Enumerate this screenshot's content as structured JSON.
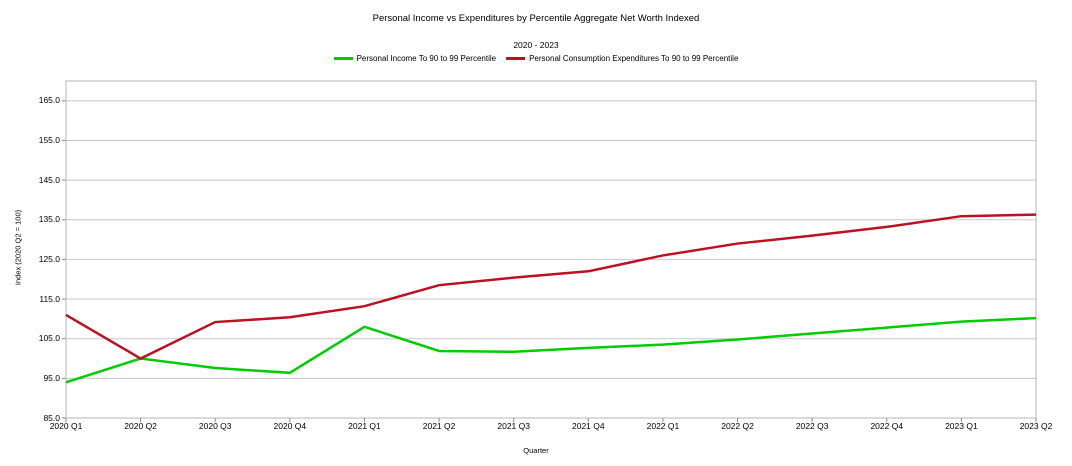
{
  "chart_data": {
    "type": "line",
    "title": "Personal Income vs Expenditures by Percentile Aggregate Net Worth Indexed",
    "subtitle": "2020 - 2023",
    "xlabel": "Quarter",
    "ylabel": "Index (2020 Q2 = 100)",
    "ylim": [
      85,
      170
    ],
    "y_ticks": [
      "85.0",
      "95.0",
      "105.0",
      "115.0",
      "125.0",
      "135.0",
      "145.0",
      "155.0",
      "165.0"
    ],
    "y_tick_values": [
      85,
      95,
      105,
      115,
      125,
      135,
      145,
      155,
      165
    ],
    "grid": "horizontal gridlines on, framed plot area",
    "legend_position": "top-center",
    "categories": [
      "2020 Q1",
      "2020 Q2",
      "2020 Q3",
      "2020 Q4",
      "2021 Q1",
      "2021 Q2",
      "2021 Q3",
      "2021 Q4",
      "2022 Q1",
      "2022 Q2",
      "2022 Q3",
      "2022 Q4",
      "2023 Q1",
      "2023 Q2"
    ],
    "series": [
      {
        "name": "Personal Income To 90 to 99 Percentile",
        "color": "#00cc00",
        "values": [
          94.0,
          100.0,
          97.6,
          96.4,
          108.0,
          101.9,
          101.7,
          102.7,
          103.5,
          104.8,
          106.3,
          107.8,
          109.3,
          110.2
        ]
      },
      {
        "name": "Personal Consumption Expenditures To 90 to 99 Percentile",
        "color": "#bb1122",
        "values": [
          111.0,
          100.0,
          109.2,
          110.4,
          113.2,
          118.5,
          120.4,
          122.0,
          126.0,
          129.0,
          131.0,
          133.2,
          135.9,
          136.3
        ]
      }
    ]
  },
  "colors": {
    "background": "#ffffff",
    "gridline": "#c9c9c9",
    "plot_border": "#b5b5b5",
    "tick_mark": "#8a8a8a",
    "text": "#000000"
  }
}
